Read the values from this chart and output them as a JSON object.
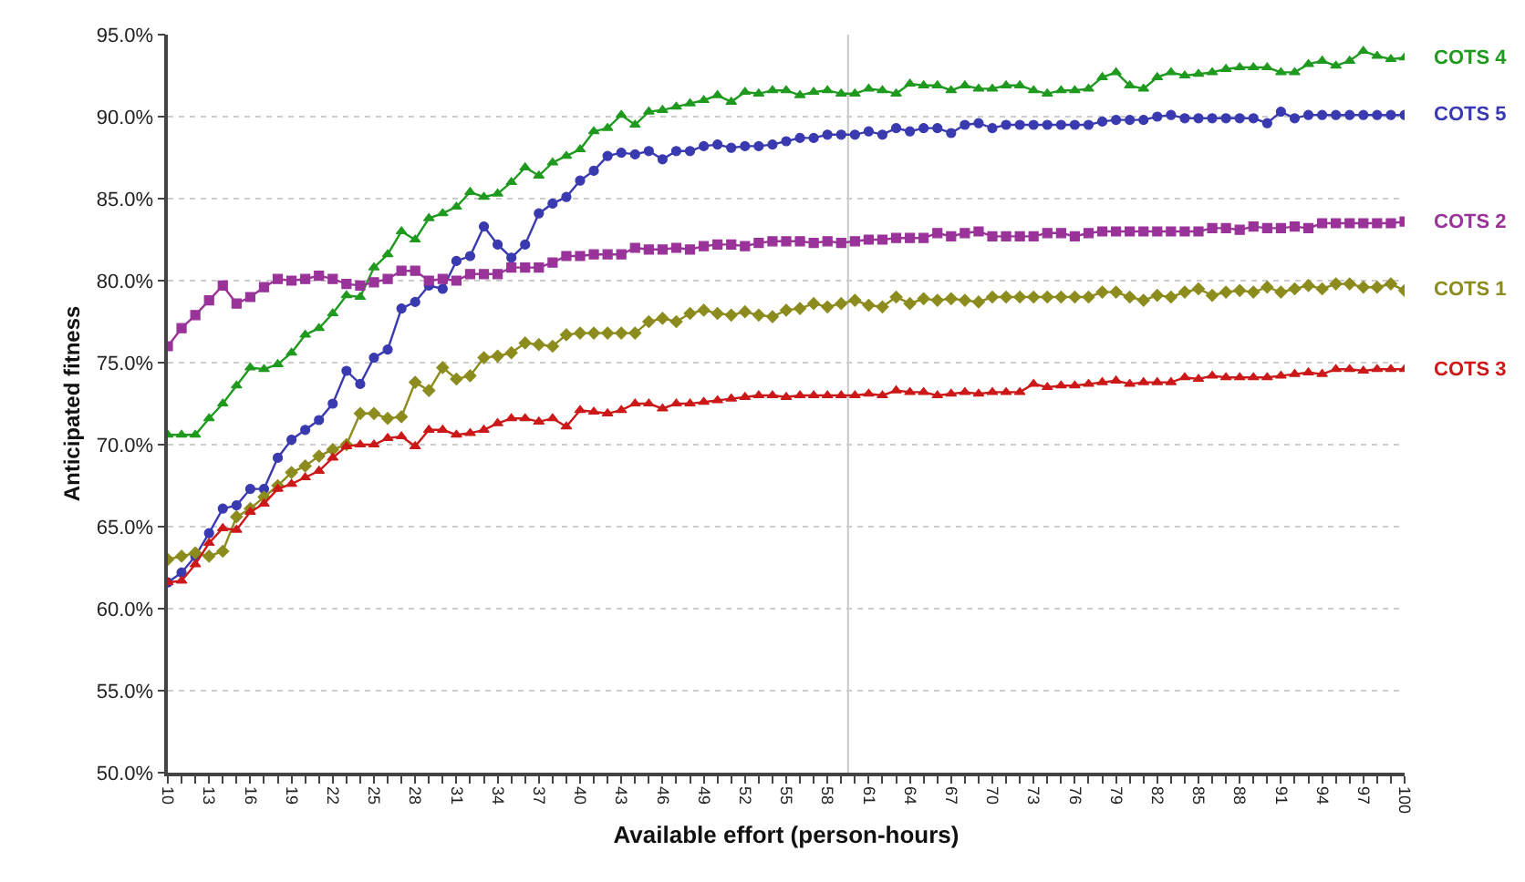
{
  "chart_data": {
    "type": "line",
    "xlabel": "Available effort (person-hours)",
    "ylabel": "Anticipated fitness",
    "x": [
      10,
      11,
      12,
      13,
      14,
      15,
      16,
      17,
      18,
      19,
      20,
      21,
      22,
      23,
      24,
      25,
      26,
      27,
      28,
      29,
      30,
      31,
      32,
      33,
      34,
      35,
      36,
      37,
      38,
      39,
      40,
      41,
      42,
      43,
      44,
      45,
      46,
      47,
      48,
      49,
      50,
      51,
      52,
      53,
      54,
      55,
      56,
      57,
      58,
      59,
      60,
      61,
      62,
      63,
      64,
      65,
      66,
      67,
      68,
      69,
      70,
      71,
      72,
      73,
      74,
      75,
      76,
      77,
      78,
      79,
      80,
      81,
      82,
      83,
      84,
      85,
      86,
      87,
      88,
      89,
      90,
      91,
      92,
      93,
      94,
      95,
      96,
      97,
      98,
      99,
      100
    ],
    "series": [
      {
        "name": "COTS 4",
        "color": "#1f9a1f",
        "marker": "triangle",
        "values": [
          70.6,
          70.6,
          70.6,
          71.6,
          72.5,
          73.6,
          74.7,
          74.6,
          74.9,
          75.6,
          76.7,
          77.1,
          78.0,
          79.1,
          79.0,
          80.8,
          81.6,
          83.0,
          82.5,
          83.8,
          84.1,
          84.5,
          85.4,
          85.1,
          85.3,
          86.0,
          86.9,
          86.4,
          87.2,
          87.6,
          88.0,
          89.1,
          89.3,
          90.1,
          89.5,
          90.3,
          90.4,
          90.6,
          90.8,
          91.0,
          91.3,
          90.9,
          91.5,
          91.4,
          91.6,
          91.6,
          91.3,
          91.5,
          91.6,
          91.4,
          91.4,
          91.7,
          91.6,
          91.4,
          92.0,
          91.9,
          91.9,
          91.6,
          91.9,
          91.7,
          91.7,
          91.9,
          91.9,
          91.6,
          91.4,
          91.6,
          91.6,
          91.7,
          92.4,
          92.7,
          91.9,
          91.7,
          92.4,
          92.7,
          92.5,
          92.6,
          92.7,
          92.9,
          93.0,
          93.0,
          93.0,
          92.7,
          92.7,
          93.2,
          93.4,
          93.1,
          93.4,
          94.0,
          93.7,
          93.5,
          93.6
        ]
      },
      {
        "name": "COTS 5",
        "color": "#3a3ab0",
        "marker": "circle",
        "values": [
          61.6,
          62.2,
          63.2,
          64.6,
          66.1,
          66.3,
          67.3,
          67.3,
          69.2,
          70.3,
          70.9,
          71.5,
          72.5,
          74.5,
          73.7,
          75.3,
          75.8,
          78.3,
          78.7,
          79.7,
          79.5,
          81.2,
          81.5,
          83.3,
          82.2,
          81.4,
          82.2,
          84.1,
          84.7,
          85.1,
          86.1,
          86.7,
          87.6,
          87.8,
          87.7,
          87.9,
          87.4,
          87.9,
          87.9,
          88.2,
          88.3,
          88.1,
          88.2,
          88.2,
          88.3,
          88.5,
          88.7,
          88.7,
          88.9,
          88.9,
          88.9,
          89.1,
          88.9,
          89.3,
          89.1,
          89.3,
          89.3,
          89.0,
          89.5,
          89.6,
          89.3,
          89.5,
          89.5,
          89.5,
          89.5,
          89.5,
          89.5,
          89.5,
          89.7,
          89.8,
          89.8,
          89.8,
          90.0,
          90.1,
          89.9,
          89.9,
          89.9,
          89.9,
          89.9,
          89.9,
          89.6,
          90.3,
          89.9,
          90.1,
          90.1,
          90.1,
          90.1,
          90.1,
          90.1,
          90.1,
          90.1
        ]
      },
      {
        "name": "COTS 2",
        "color": "#993399",
        "marker": "square",
        "values": [
          76.0,
          77.1,
          77.9,
          78.8,
          79.7,
          78.6,
          79.0,
          79.6,
          80.1,
          80.0,
          80.1,
          80.3,
          80.1,
          79.8,
          79.7,
          79.9,
          80.1,
          80.6,
          80.6,
          80.0,
          80.1,
          80.0,
          80.4,
          80.4,
          80.4,
          80.8,
          80.8,
          80.8,
          81.1,
          81.5,
          81.5,
          81.6,
          81.6,
          81.6,
          82.0,
          81.9,
          81.9,
          82.0,
          81.9,
          82.1,
          82.2,
          82.2,
          82.1,
          82.3,
          82.4,
          82.4,
          82.4,
          82.3,
          82.4,
          82.3,
          82.4,
          82.5,
          82.5,
          82.6,
          82.6,
          82.6,
          82.9,
          82.7,
          82.9,
          83.0,
          82.7,
          82.7,
          82.7,
          82.7,
          82.9,
          82.9,
          82.7,
          82.9,
          83.0,
          83.0,
          83.0,
          83.0,
          83.0,
          83.0,
          83.0,
          83.0,
          83.2,
          83.2,
          83.1,
          83.3,
          83.2,
          83.2,
          83.3,
          83.2,
          83.5,
          83.5,
          83.5,
          83.5,
          83.5,
          83.5,
          83.6
        ]
      },
      {
        "name": "COTS 1",
        "color": "#8c8c1e",
        "marker": "diamond",
        "values": [
          63.0,
          63.2,
          63.4,
          63.2,
          63.5,
          65.6,
          66.1,
          66.8,
          67.5,
          68.3,
          68.7,
          69.3,
          69.7,
          70.0,
          71.9,
          71.9,
          71.6,
          71.7,
          73.8,
          73.3,
          74.7,
          74.0,
          74.2,
          75.3,
          75.4,
          75.6,
          76.2,
          76.1,
          76.0,
          76.7,
          76.8,
          76.8,
          76.8,
          76.8,
          76.8,
          77.5,
          77.7,
          77.5,
          78.0,
          78.2,
          78.0,
          77.9,
          78.1,
          77.9,
          77.8,
          78.2,
          78.3,
          78.6,
          78.4,
          78.6,
          78.8,
          78.5,
          78.4,
          79.0,
          78.6,
          78.9,
          78.8,
          78.9,
          78.8,
          78.7,
          79.0,
          79.0,
          79.0,
          79.0,
          79.0,
          79.0,
          79.0,
          79.0,
          79.3,
          79.3,
          79.0,
          78.8,
          79.1,
          79.0,
          79.3,
          79.5,
          79.1,
          79.3,
          79.4,
          79.3,
          79.6,
          79.3,
          79.5,
          79.7,
          79.5,
          79.8,
          79.8,
          79.6,
          79.6,
          79.8,
          79.4
        ]
      },
      {
        "name": "COTS 3",
        "color": "#cc1818",
        "marker": "triangle",
        "values": [
          61.6,
          61.7,
          62.7,
          64.0,
          64.9,
          64.8,
          65.9,
          66.4,
          67.3,
          67.6,
          68.0,
          68.4,
          69.2,
          69.9,
          70.0,
          70.0,
          70.4,
          70.5,
          69.9,
          70.9,
          70.9,
          70.6,
          70.7,
          70.9,
          71.3,
          71.6,
          71.6,
          71.4,
          71.6,
          71.1,
          72.1,
          72.0,
          71.9,
          72.1,
          72.5,
          72.5,
          72.2,
          72.5,
          72.5,
          72.6,
          72.7,
          72.8,
          72.9,
          73.0,
          73.0,
          72.9,
          73.0,
          73.0,
          73.0,
          73.0,
          73.0,
          73.1,
          73.0,
          73.3,
          73.2,
          73.2,
          73.0,
          73.1,
          73.2,
          73.1,
          73.2,
          73.2,
          73.2,
          73.7,
          73.5,
          73.6,
          73.6,
          73.7,
          73.8,
          73.9,
          73.7,
          73.8,
          73.8,
          73.8,
          74.1,
          74.0,
          74.2,
          74.1,
          74.1,
          74.1,
          74.1,
          74.2,
          74.3,
          74.4,
          74.3,
          74.6,
          74.6,
          74.5,
          74.6,
          74.6,
          74.6
        ]
      }
    ],
    "xlim": [
      10,
      100
    ],
    "xticks": [
      10,
      {
        "value": 11,
        "label": null
      },
      {
        "value": 12,
        "label": null
      },
      13,
      {
        "value": 14,
        "label": null
      },
      {
        "value": 15,
        "label": null
      },
      16,
      {
        "value": 17,
        "label": null
      },
      {
        "value": 18,
        "label": null
      },
      19,
      {
        "value": 20,
        "label": null
      },
      {
        "value": 21,
        "label": null
      },
      22,
      {
        "value": 23,
        "label": null
      },
      {
        "value": 24,
        "label": null
      },
      25,
      {
        "value": 26,
        "label": null
      },
      {
        "value": 27,
        "label": null
      },
      28,
      {
        "value": 29,
        "label": null
      },
      {
        "value": 30,
        "label": null
      },
      31,
      {
        "value": 32,
        "label": null
      },
      {
        "value": 33,
        "label": null
      },
      34,
      {
        "value": 35,
        "label": null
      },
      {
        "value": 36,
        "label": null
      },
      37,
      {
        "value": 38,
        "label": null
      },
      {
        "value": 39,
        "label": null
      },
      40,
      {
        "value": 41,
        "label": null
      },
      {
        "value": 42,
        "label": null
      },
      43,
      {
        "value": 44,
        "label": null
      },
      {
        "value": 45,
        "label": null
      },
      46,
      {
        "value": 47,
        "label": null
      },
      {
        "value": 48,
        "label": null
      },
      49,
      {
        "value": 50,
        "label": null
      },
      {
        "value": 51,
        "label": null
      },
      52,
      {
        "value": 53,
        "label": null
      },
      {
        "value": 54,
        "label": null
      },
      55,
      {
        "value": 56,
        "label": null
      },
      {
        "value": 57,
        "label": null
      },
      58,
      {
        "value": 59,
        "label": null
      },
      {
        "value": 60,
        "label": null
      },
      61,
      {
        "value": 62,
        "label": null
      },
      {
        "value": 63,
        "label": null
      },
      64,
      {
        "value": 65,
        "label": null
      },
      {
        "value": 66,
        "label": null
      },
      67,
      {
        "value": 68,
        "label": null
      },
      {
        "value": 69,
        "label": null
      },
      70,
      {
        "value": 71,
        "label": null
      },
      {
        "value": 72,
        "label": null
      },
      73,
      {
        "value": 74,
        "label": null
      },
      {
        "value": 75,
        "label": null
      },
      76,
      {
        "value": 77,
        "label": null
      },
      {
        "value": 78,
        "label": null
      },
      79,
      {
        "value": 80,
        "label": null
      },
      {
        "value": 81,
        "label": null
      },
      82,
      {
        "value": 83,
        "label": null
      },
      {
        "value": 84,
        "label": null
      },
      85,
      {
        "value": 86,
        "label": null
      },
      {
        "value": 87,
        "label": null
      },
      88,
      {
        "value": 89,
        "label": null
      },
      {
        "value": 90,
        "label": null
      },
      91,
      {
        "value": 92,
        "label": null
      },
      {
        "value": 93,
        "label": null
      },
      94,
      {
        "value": 95,
        "label": null
      },
      {
        "value": 96,
        "label": null
      },
      97,
      {
        "value": 98,
        "label": null
      },
      {
        "value": 99,
        "label": null
      },
      100
    ],
    "ylim": [
      50,
      95
    ],
    "yticks": [
      {
        "value": 50,
        "label": "50.0%"
      },
      {
        "value": 55,
        "label": "55.0%"
      },
      {
        "value": 60,
        "label": "60.0%"
      },
      {
        "value": 65,
        "label": "65.0%"
      },
      {
        "value": 70,
        "label": "70.0%"
      },
      {
        "value": 75,
        "label": "75.0%"
      },
      {
        "value": 80,
        "label": "80.0%"
      },
      {
        "value": 85,
        "label": "85.0%"
      },
      {
        "value": 90,
        "label": "90.0%"
      },
      {
        "value": 95,
        "label": "95.0%"
      }
    ],
    "ref_lines": [
      {
        "axis": "x",
        "value": 59.5,
        "color": "#c8c8c8"
      }
    ],
    "grid": "y",
    "legend": false,
    "line_style": "solid"
  }
}
